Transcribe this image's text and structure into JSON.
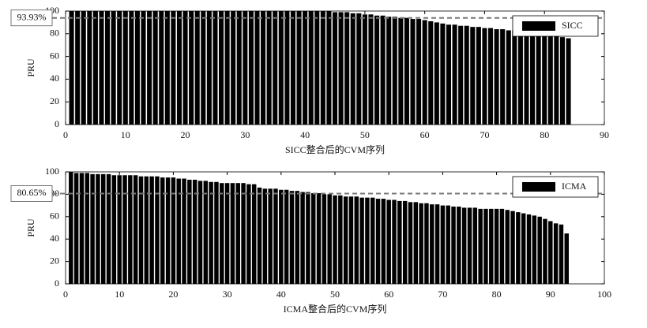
{
  "chart_data": [
    {
      "type": "bar",
      "xlabel": "SICC整合后的CVM序列",
      "ylabel": "PRU",
      "color": "#000000",
      "series": [
        {
          "name": "SICC",
          "color": "#000000",
          "x": [
            1,
            2,
            3,
            4,
            5,
            6,
            7,
            8,
            9,
            10,
            11,
            12,
            13,
            14,
            15,
            16,
            17,
            18,
            19,
            20,
            21,
            22,
            23,
            24,
            25,
            26,
            27,
            28,
            29,
            30,
            31,
            32,
            33,
            34,
            35,
            36,
            37,
            38,
            39,
            40,
            41,
            42,
            43,
            44,
            45,
            46,
            47,
            48,
            49,
            50,
            51,
            52,
            53,
            54,
            55,
            56,
            57,
            58,
            59,
            60,
            61,
            62,
            63,
            64,
            65,
            66,
            67,
            68,
            69,
            70,
            71,
            72,
            73,
            74,
            75,
            76,
            77,
            78,
            79,
            80,
            81,
            82,
            83,
            84
          ],
          "values": [
            100,
            100,
            100,
            100,
            100,
            100,
            100,
            100,
            100,
            100,
            100,
            100,
            100,
            100,
            100,
            100,
            100,
            100,
            100,
            100,
            100,
            100,
            100,
            100,
            100,
            100,
            100,
            100,
            100,
            100,
            100,
            100,
            100,
            100,
            100,
            100,
            100,
            100,
            100,
            100,
            100,
            100,
            100,
            100,
            99,
            99,
            99,
            98,
            98,
            97,
            97,
            96,
            96,
            95,
            95,
            94,
            94,
            93,
            93,
            92,
            91,
            90,
            89,
            88,
            88,
            87,
            87,
            86,
            86,
            85,
            85,
            84,
            84,
            83,
            83,
            82,
            82,
            81,
            81,
            80,
            79,
            78,
            77,
            76
          ]
        }
      ],
      "xlim": [
        0,
        90
      ],
      "xticks": [
        0,
        10,
        20,
        30,
        40,
        50,
        60,
        70,
        80,
        90
      ],
      "ylim": [
        0,
        100
      ],
      "yticks": [
        0,
        20,
        40,
        60,
        80,
        100
      ],
      "reference_line": {
        "value": 93.93,
        "label": "93.93%"
      },
      "legend": "upper right"
    },
    {
      "type": "bar",
      "xlabel": "ICMA整合后的CVM序列",
      "ylabel": "PRU",
      "color": "#000000",
      "series": [
        {
          "name": "ICMA",
          "color": "#000000",
          "x": [
            1,
            2,
            3,
            4,
            5,
            6,
            7,
            8,
            9,
            10,
            11,
            12,
            13,
            14,
            15,
            16,
            17,
            18,
            19,
            20,
            21,
            22,
            23,
            24,
            25,
            26,
            27,
            28,
            29,
            30,
            31,
            32,
            33,
            34,
            35,
            36,
            37,
            38,
            39,
            40,
            41,
            42,
            43,
            44,
            45,
            46,
            47,
            48,
            49,
            50,
            51,
            52,
            53,
            54,
            55,
            56,
            57,
            58,
            59,
            60,
            61,
            62,
            63,
            64,
            65,
            66,
            67,
            68,
            69,
            70,
            71,
            72,
            73,
            74,
            75,
            76,
            77,
            78,
            79,
            80,
            81,
            82,
            83,
            84,
            85,
            86,
            87,
            88,
            89,
            90,
            91,
            92,
            93
          ],
          "values": [
            100,
            99,
            99,
            99,
            98,
            98,
            98,
            98,
            97,
            97,
            97,
            97,
            97,
            96,
            96,
            96,
            96,
            95,
            95,
            95,
            94,
            94,
            93,
            93,
            92,
            92,
            91,
            91,
            90,
            90,
            90,
            90,
            90,
            89,
            89,
            86,
            85,
            85,
            85,
            84,
            84,
            83,
            83,
            82,
            82,
            81,
            81,
            80,
            80,
            79,
            79,
            78,
            78,
            78,
            77,
            77,
            77,
            76,
            76,
            75,
            75,
            74,
            74,
            73,
            73,
            72,
            72,
            71,
            71,
            70,
            70,
            69,
            69,
            68,
            68,
            68,
            67,
            67,
            67,
            67,
            67,
            66,
            65,
            64,
            63,
            62,
            61,
            60,
            58,
            56,
            54,
            53,
            45
          ]
        }
      ],
      "xlim": [
        0,
        100
      ],
      "xticks": [
        0,
        10,
        20,
        30,
        40,
        50,
        60,
        70,
        80,
        90,
        100
      ],
      "ylim": [
        0,
        100
      ],
      "yticks": [
        0,
        20,
        40,
        60,
        80,
        100
      ],
      "reference_line": {
        "value": 80.65,
        "label": "80.65%"
      },
      "legend": "upper right"
    }
  ]
}
